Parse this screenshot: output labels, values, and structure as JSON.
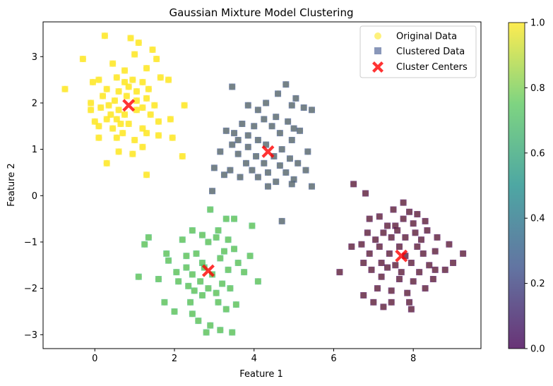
{
  "chart_data": {
    "type": "scatter",
    "title": "Gaussian Mixture Model Clustering",
    "xlabel": "Feature 1",
    "ylabel": "Feature 2",
    "xlim": [
      -1.3,
      9.7
    ],
    "ylim": [
      -3.3,
      3.75
    ],
    "xticks": [
      0,
      2,
      4,
      6,
      8
    ],
    "yticks": [
      -3,
      -2,
      -1,
      0,
      1,
      2,
      3
    ],
    "legend_position": "top-right",
    "legend": [
      "Original Data",
      "Clustered Data",
      "Cluster Centers"
    ],
    "colorbar": {
      "range": [
        0,
        1
      ],
      "ticks": [
        "0.0",
        "0.2",
        "0.4",
        "0.6",
        "0.8",
        "1.0"
      ],
      "stops": [
        "#440154",
        "#3b528b",
        "#21918c",
        "#5ec962",
        "#fde725"
      ]
    },
    "clusters": [
      {
        "label": 1.0,
        "color": "#fde725",
        "points": [
          [
            -0.75,
            2.3
          ],
          [
            -0.3,
            2.95
          ],
          [
            0.25,
            3.45
          ],
          [
            0.9,
            3.4
          ],
          [
            1.1,
            3.3
          ],
          [
            1.45,
            3.15
          ],
          [
            1.0,
            3.05
          ],
          [
            1.55,
            2.95
          ],
          [
            0.45,
            2.85
          ],
          [
            0.75,
            2.7
          ],
          [
            1.3,
            2.75
          ],
          [
            1.65,
            2.55
          ],
          [
            -0.05,
            2.45
          ],
          [
            0.1,
            2.5
          ],
          [
            0.55,
            2.55
          ],
          [
            0.75,
            2.45
          ],
          [
            0.95,
            2.5
          ],
          [
            1.2,
            2.45
          ],
          [
            1.85,
            2.5
          ],
          [
            0.3,
            2.3
          ],
          [
            0.6,
            2.25
          ],
          [
            0.85,
            2.35
          ],
          [
            1.05,
            2.25
          ],
          [
            1.35,
            2.3
          ],
          [
            0.2,
            2.15
          ],
          [
            0.5,
            2.05
          ],
          [
            0.8,
            2.15
          ],
          [
            1.05,
            2.05
          ],
          [
            1.3,
            2.1
          ],
          [
            -0.1,
            2.0
          ],
          [
            0.35,
            1.95
          ],
          [
            0.6,
            1.85
          ],
          [
            1.2,
            1.9
          ],
          [
            1.5,
            1.95
          ],
          [
            2.25,
            1.95
          ],
          [
            -0.1,
            1.85
          ],
          [
            0.15,
            1.9
          ],
          [
            0.4,
            1.75
          ],
          [
            0.75,
            1.75
          ],
          [
            1.05,
            1.85
          ],
          [
            1.4,
            1.75
          ],
          [
            0.0,
            1.6
          ],
          [
            0.3,
            1.65
          ],
          [
            0.55,
            1.65
          ],
          [
            0.85,
            1.55
          ],
          [
            1.6,
            1.6
          ],
          [
            1.9,
            1.65
          ],
          [
            0.1,
            1.5
          ],
          [
            0.45,
            1.45
          ],
          [
            0.65,
            1.55
          ],
          [
            1.2,
            1.45
          ],
          [
            0.7,
            1.35
          ],
          [
            1.3,
            1.35
          ],
          [
            0.55,
            1.25
          ],
          [
            0.1,
            1.25
          ],
          [
            1.6,
            1.3
          ],
          [
            1.0,
            1.2
          ],
          [
            1.95,
            1.25
          ],
          [
            0.6,
            0.95
          ],
          [
            0.95,
            0.9
          ],
          [
            1.2,
            1.05
          ],
          [
            2.2,
            0.85
          ],
          [
            0.3,
            0.7
          ],
          [
            1.3,
            0.45
          ]
        ]
      },
      {
        "label": 0.33,
        "color": "#3b528b",
        "points": [
          [
            3.45,
            2.35
          ],
          [
            4.8,
            2.4
          ],
          [
            4.6,
            2.2
          ],
          [
            5.05,
            2.1
          ],
          [
            4.3,
            2.0
          ],
          [
            3.85,
            1.95
          ],
          [
            4.95,
            1.95
          ],
          [
            5.45,
            1.85
          ],
          [
            5.25,
            1.9
          ],
          [
            4.1,
            1.85
          ],
          [
            4.55,
            1.7
          ],
          [
            4.25,
            1.65
          ],
          [
            4.85,
            1.6
          ],
          [
            3.7,
            1.55
          ],
          [
            4.0,
            1.5
          ],
          [
            4.45,
            1.5
          ],
          [
            5.0,
            1.45
          ],
          [
            3.3,
            1.4
          ],
          [
            3.5,
            1.35
          ],
          [
            3.85,
            1.3
          ],
          [
            4.65,
            1.35
          ],
          [
            5.15,
            1.4
          ],
          [
            3.6,
            1.2
          ],
          [
            4.1,
            1.2
          ],
          [
            4.95,
            1.2
          ],
          [
            3.45,
            1.1
          ],
          [
            3.85,
            1.05
          ],
          [
            4.3,
            1.1
          ],
          [
            4.7,
            1.0
          ],
          [
            5.35,
            0.95
          ],
          [
            3.15,
            0.95
          ],
          [
            3.6,
            0.9
          ],
          [
            4.05,
            0.85
          ],
          [
            4.5,
            0.85
          ],
          [
            4.9,
            0.8
          ],
          [
            3.8,
            0.7
          ],
          [
            4.25,
            0.7
          ],
          [
            4.65,
            0.65
          ],
          [
            5.1,
            0.7
          ],
          [
            3.4,
            0.55
          ],
          [
            3.95,
            0.55
          ],
          [
            4.35,
            0.5
          ],
          [
            4.8,
            0.5
          ],
          [
            5.3,
            0.55
          ],
          [
            3.65,
            0.4
          ],
          [
            4.1,
            0.4
          ],
          [
            4.55,
            0.3
          ],
          [
            5.0,
            0.35
          ],
          [
            3.25,
            0.45
          ],
          [
            4.35,
            0.2
          ],
          [
            4.95,
            0.25
          ],
          [
            5.45,
            0.2
          ],
          [
            3.0,
            0.6
          ],
          [
            2.95,
            0.1
          ],
          [
            4.7,
            -0.55
          ]
        ]
      },
      {
        "label": 0.67,
        "color": "#3fbc73",
        "points": [
          [
            2.9,
            -0.3
          ],
          [
            3.3,
            -0.5
          ],
          [
            3.5,
            -0.5
          ],
          [
            3.95,
            -0.65
          ],
          [
            3.1,
            -0.75
          ],
          [
            2.45,
            -0.75
          ],
          [
            2.7,
            -0.85
          ],
          [
            3.05,
            -0.9
          ],
          [
            3.35,
            -0.95
          ],
          [
            2.2,
            -0.95
          ],
          [
            1.35,
            -0.9
          ],
          [
            1.25,
            -1.05
          ],
          [
            2.85,
            -1.0
          ],
          [
            3.5,
            -1.15
          ],
          [
            3.25,
            -1.2
          ],
          [
            2.55,
            -1.25
          ],
          [
            1.8,
            -1.25
          ],
          [
            2.3,
            -1.3
          ],
          [
            3.15,
            -1.35
          ],
          [
            3.9,
            -1.3
          ],
          [
            1.85,
            -1.4
          ],
          [
            2.7,
            -1.45
          ],
          [
            3.6,
            -1.45
          ],
          [
            2.3,
            -1.55
          ],
          [
            2.75,
            -1.55
          ],
          [
            3.35,
            -1.6
          ],
          [
            2.05,
            -1.65
          ],
          [
            2.45,
            -1.7
          ],
          [
            2.95,
            -1.7
          ],
          [
            3.75,
            -1.65
          ],
          [
            1.1,
            -1.75
          ],
          [
            1.6,
            -1.8
          ],
          [
            2.1,
            -1.85
          ],
          [
            2.65,
            -1.85
          ],
          [
            3.2,
            -1.9
          ],
          [
            4.1,
            -1.85
          ],
          [
            2.35,
            -1.95
          ],
          [
            2.85,
            -2.0
          ],
          [
            3.4,
            -2.0
          ],
          [
            2.5,
            -2.05
          ],
          [
            3.05,
            -2.1
          ],
          [
            2.7,
            -2.15
          ],
          [
            1.75,
            -2.3
          ],
          [
            2.4,
            -2.3
          ],
          [
            3.1,
            -2.3
          ],
          [
            3.55,
            -2.35
          ],
          [
            2.0,
            -2.5
          ],
          [
            2.45,
            -2.55
          ],
          [
            3.3,
            -2.45
          ],
          [
            2.6,
            -2.7
          ],
          [
            2.9,
            -2.8
          ],
          [
            3.15,
            -2.9
          ],
          [
            3.45,
            -2.95
          ],
          [
            2.8,
            -2.95
          ]
        ]
      },
      {
        "label": 0.0,
        "color": "#440154",
        "points": [
          [
            6.8,
            0.05
          ],
          [
            6.5,
            0.25
          ],
          [
            7.75,
            -0.15
          ],
          [
            7.5,
            -0.3
          ],
          [
            7.9,
            -0.35
          ],
          [
            8.1,
            -0.4
          ],
          [
            7.15,
            -0.45
          ],
          [
            6.9,
            -0.5
          ],
          [
            7.75,
            -0.5
          ],
          [
            8.3,
            -0.55
          ],
          [
            7.35,
            -0.65
          ],
          [
            7.55,
            -0.65
          ],
          [
            8.0,
            -0.6
          ],
          [
            6.85,
            -0.8
          ],
          [
            7.25,
            -0.8
          ],
          [
            7.6,
            -0.75
          ],
          [
            8.05,
            -0.8
          ],
          [
            8.35,
            -0.75
          ],
          [
            7.05,
            -0.95
          ],
          [
            7.45,
            -0.9
          ],
          [
            7.8,
            -0.9
          ],
          [
            8.2,
            -0.95
          ],
          [
            8.6,
            -0.9
          ],
          [
            6.7,
            -1.05
          ],
          [
            7.15,
            -1.1
          ],
          [
            7.65,
            -1.1
          ],
          [
            8.1,
            -1.1
          ],
          [
            8.9,
            -1.05
          ],
          [
            6.45,
            -1.1
          ],
          [
            6.9,
            -1.25
          ],
          [
            7.4,
            -1.25
          ],
          [
            7.8,
            -1.3
          ],
          [
            8.25,
            -1.25
          ],
          [
            8.55,
            -1.2
          ],
          [
            9.25,
            -1.25
          ],
          [
            6.75,
            -1.45
          ],
          [
            7.2,
            -1.45
          ],
          [
            7.55,
            -1.5
          ],
          [
            7.95,
            -1.45
          ],
          [
            8.4,
            -1.5
          ],
          [
            9.0,
            -1.45
          ],
          [
            6.15,
            -1.65
          ],
          [
            6.95,
            -1.6
          ],
          [
            7.35,
            -1.55
          ],
          [
            7.7,
            -1.65
          ],
          [
            8.15,
            -1.65
          ],
          [
            8.55,
            -1.6
          ],
          [
            8.8,
            -1.6
          ],
          [
            7.2,
            -1.75
          ],
          [
            7.65,
            -1.8
          ],
          [
            8.0,
            -1.85
          ],
          [
            8.5,
            -1.8
          ],
          [
            6.75,
            -2.15
          ],
          [
            7.1,
            -2.0
          ],
          [
            7.45,
            -2.05
          ],
          [
            7.85,
            -2.1
          ],
          [
            8.3,
            -2.0
          ],
          [
            7.0,
            -2.3
          ],
          [
            7.45,
            -2.3
          ],
          [
            7.9,
            -2.3
          ],
          [
            7.25,
            -2.4
          ],
          [
            7.95,
            -2.45
          ]
        ]
      }
    ],
    "centers": [
      [
        0.85,
        1.95
      ],
      [
        4.35,
        0.95
      ],
      [
        2.85,
        -1.62
      ],
      [
        7.7,
        -1.3
      ]
    ]
  }
}
